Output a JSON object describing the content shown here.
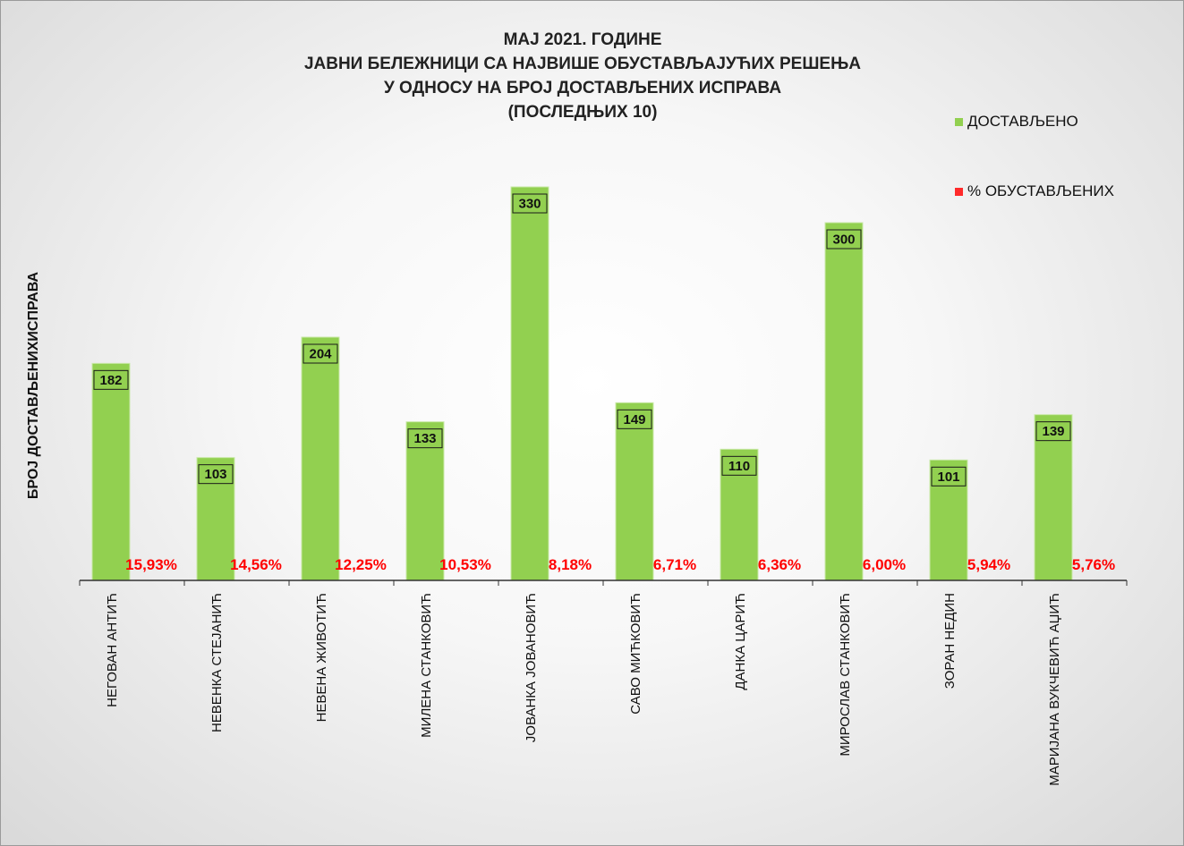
{
  "chart_data": {
    "type": "bar",
    "title_lines": [
      "МАЈ 2021. ГОДИНЕ",
      "ЈАВНИ БЕЛЕЖНИЦИ СА НАЈВИШЕ ОБУСТАВЉАЈУЋИХ РЕШЕЊА",
      "У ОДНОСУ НА БРОЈ ДОСТАВЉЕНИХ ИСПРАВА",
      "(ПОСЛЕДЊИХ 10)"
    ],
    "ylabel": "БРОЈ ДОСТАВЉЕНИХИСПРАВА",
    "xlabel": "",
    "categories": [
      "НЕГОВАН АНТИЋ",
      "НЕВЕНКА СТЕЈАНИЋ",
      "НЕВЕНА ЖИВОТИЋ",
      "МИЛЕНА СТАНКОВИЋ",
      "ЈОВАНКА ЈОВАНОВИЋ",
      "САВО МИЋКОВИЋ",
      "ДАНКА ЦАРИЋ",
      "МИРОСЛАВ СТАНКОВИЋ",
      "ЗОРАН НЕДИН",
      "МАРИЈАНА ВУКЧЕВИЋ АЏИЋ"
    ],
    "series": [
      {
        "name": "ДОСТАВЉЕНО",
        "color": "#92d050",
        "values": [
          182,
          103,
          204,
          133,
          330,
          149,
          110,
          300,
          101,
          139
        ],
        "labels": [
          "182",
          "103",
          "204",
          "133",
          "330",
          "149",
          "110",
          "300",
          "101",
          "139"
        ]
      },
      {
        "name": "% ОБУСТАВЉЕНИХ",
        "color": "#ff0000",
        "values": [
          15.93,
          14.56,
          12.25,
          10.53,
          8.18,
          6.71,
          6.36,
          6.0,
          5.94,
          5.76
        ],
        "labels": [
          "15,93%",
          "14,56%",
          "12,25%",
          "10,53%",
          "8,18%",
          "6,71%",
          "6,36%",
          "6,00%",
          "5,94%",
          "5,76%"
        ]
      }
    ],
    "ylim": [
      0,
      330
    ],
    "grid": false,
    "legend_position": "top-right"
  }
}
